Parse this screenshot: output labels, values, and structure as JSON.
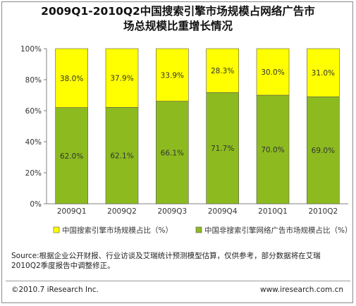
{
  "title": {
    "line1": "2009Q1-2010Q2中国搜索引擎市场规模占网络广告市",
    "line2": "场总规模比重增长情况"
  },
  "chart_data": {
    "type": "bar",
    "stacked": true,
    "percent": true,
    "categories": [
      "2009Q1",
      "2009Q2",
      "2009Q3",
      "2009Q4",
      "2010Q1",
      "2010Q2"
    ],
    "series": [
      {
        "name": "中国非搜索引擎网络广告市场规模占比（%）",
        "values": [
          62.0,
          62.1,
          66.1,
          71.7,
          70.0,
          69.0
        ],
        "labels": [
          "62.0%",
          "62.1%",
          "66.1%",
          "71.7%",
          "70.0%",
          "69.0%"
        ],
        "color": "#8dbb1f"
      },
      {
        "name": "中国搜索引擎市场规模占比（%）",
        "values": [
          38.0,
          37.9,
          33.9,
          28.3,
          30.0,
          31.0
        ],
        "labels": [
          "38.0%",
          "37.9%",
          "33.9%",
          "28.3%",
          "30.0%",
          "31.0%"
        ],
        "color": "#ffff00"
      }
    ],
    "y_ticks": [
      "0%",
      "20%",
      "40%",
      "60%",
      "80%",
      "100%"
    ],
    "ylim": [
      0,
      100
    ],
    "legend_position": "bottom",
    "grid": false,
    "colors": {
      "background": "#ffffff",
      "axis": "#808080",
      "label": "#333333"
    }
  },
  "footer": {
    "source": "Source:根据企业公开财报、行业访谈及艾瑞统计预测模型估算，仅供参考，部分数据将在艾瑞2010Q2季度报告中调整修正。",
    "copyright": "©2010.7 iResearch Inc.",
    "website": "www.iresearch.com.cn"
  }
}
